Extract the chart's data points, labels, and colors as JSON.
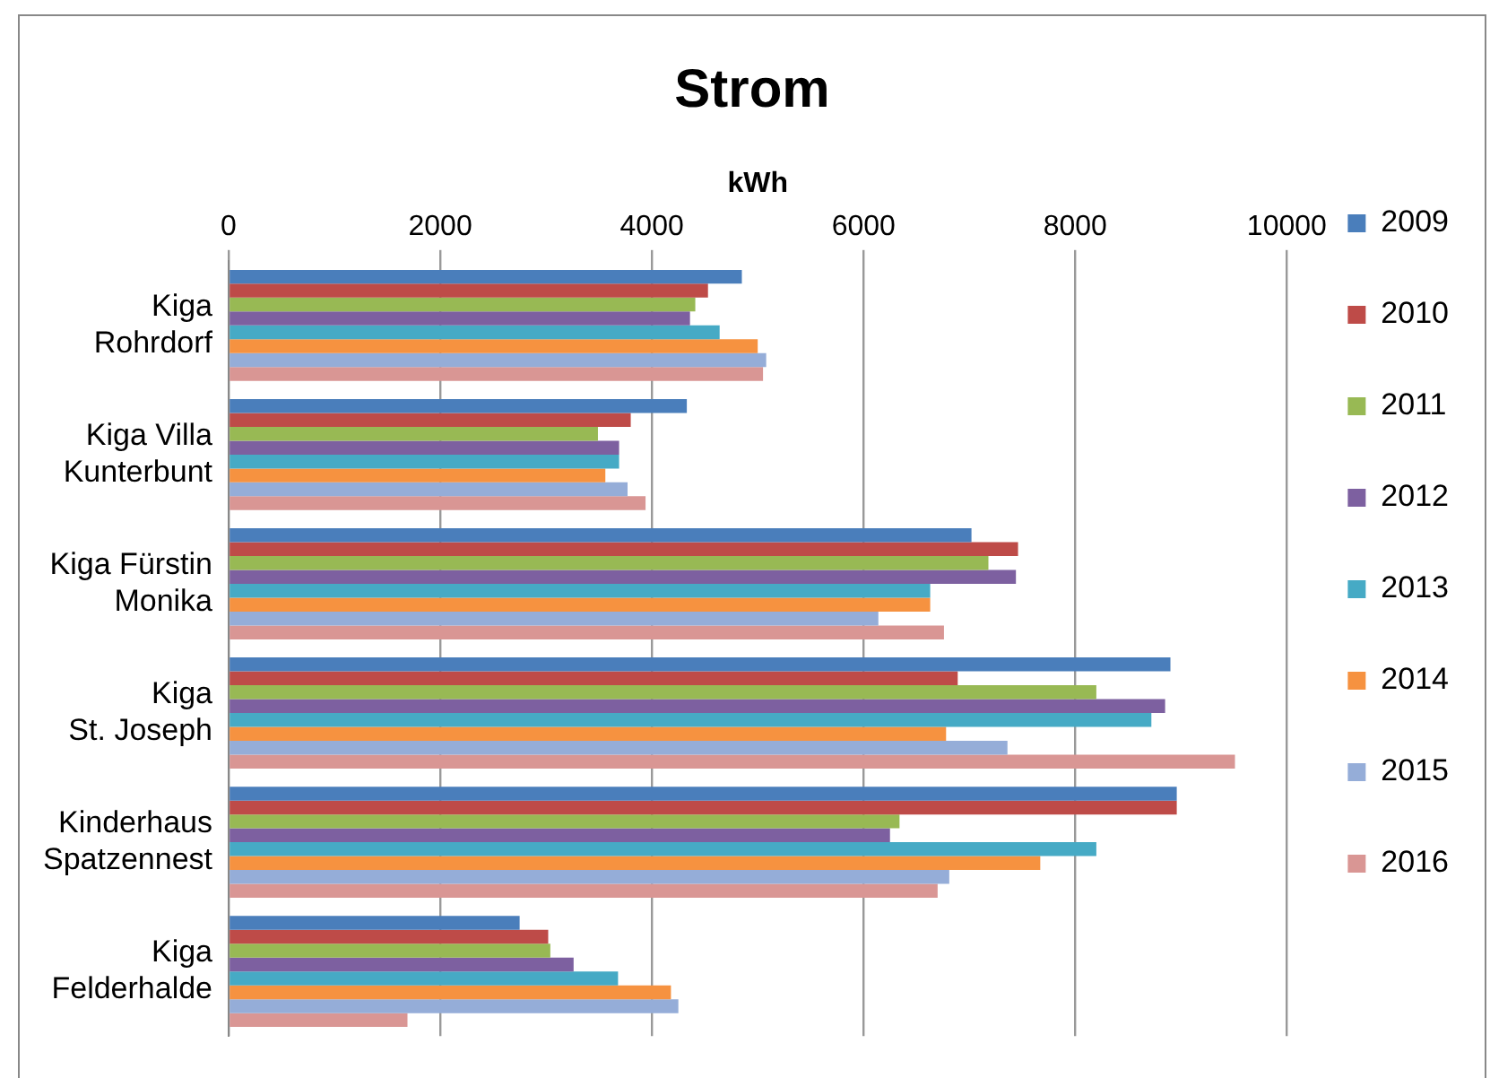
{
  "chart_data": {
    "type": "bar",
    "orientation": "horizontal",
    "title": "Strom",
    "xlabel": "kWh",
    "categories": [
      "Kiga\nRohrdorf",
      "Kiga Villa\nKunterbunt",
      "Kiga Fürstin\nMonika",
      "Kiga\nSt. Joseph",
      "Kinderhaus\nSpatzennest",
      "Kiga\nFelderhalde"
    ],
    "series": [
      {
        "name": "2009",
        "color": "#4a7ebb",
        "values": [
          4850,
          4330,
          7020,
          8900,
          8960,
          2750
        ]
      },
      {
        "name": "2010",
        "color": "#be4b48",
        "values": [
          4530,
          3800,
          7460,
          6890,
          8960,
          3020
        ]
      },
      {
        "name": "2011",
        "color": "#98b954",
        "values": [
          4410,
          3490,
          7180,
          8200,
          6340,
          3040
        ]
      },
      {
        "name": "2012",
        "color": "#7d60a0",
        "values": [
          4360,
          3690,
          7440,
          8850,
          6250,
          3260
        ]
      },
      {
        "name": "2013",
        "color": "#46aac5",
        "values": [
          4640,
          3690,
          6630,
          8720,
          8200,
          3680
        ]
      },
      {
        "name": "2014",
        "color": "#f69240",
        "values": [
          5000,
          3560,
          6630,
          6780,
          7670,
          4180
        ]
      },
      {
        "name": "2015",
        "color": "#95add8",
        "values": [
          5080,
          3770,
          6140,
          7360,
          6810,
          4250
        ]
      },
      {
        "name": "2016",
        "color": "#d99694",
        "values": [
          5050,
          3940,
          6760,
          9510,
          6700,
          1690
        ]
      }
    ],
    "xlim": [
      0,
      10000
    ],
    "xticks": [
      0,
      2000,
      4000,
      6000,
      8000,
      10000
    ],
    "grid": "x",
    "legend": "right"
  }
}
